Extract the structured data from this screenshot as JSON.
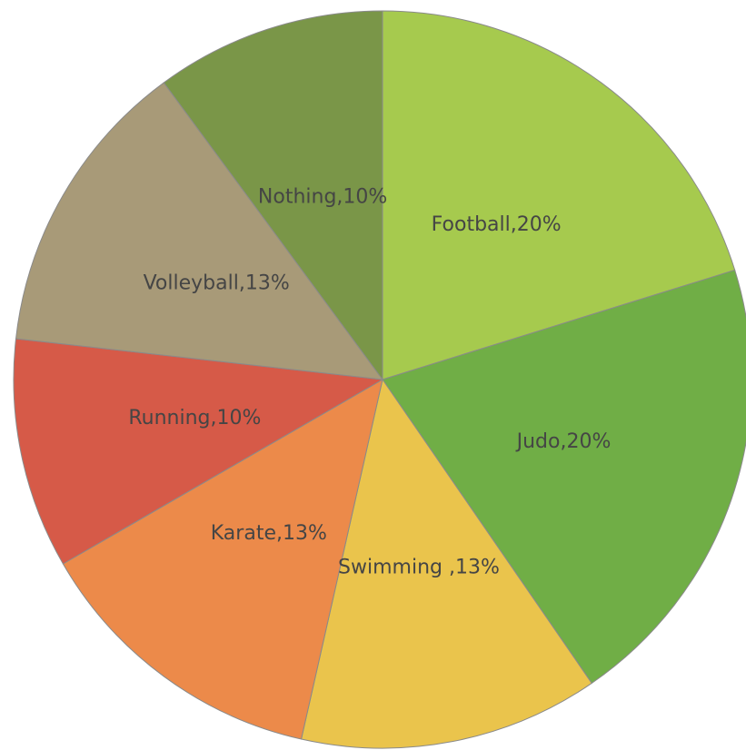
{
  "chart_data": {
    "type": "pie",
    "categories": [
      "Football",
      "Judo",
      "Swimming",
      "Karate",
      "Running",
      "Volleyball",
      "Nothing"
    ],
    "values": [
      20,
      20,
      13,
      13,
      10,
      13,
      10
    ],
    "value_labels": [
      "Football,20%",
      "Judo,20%",
      "Swimming ,13%",
      "Karate,13%",
      "Running,10%",
      "Volleyball,13%",
      "Nothing,10%"
    ],
    "colors": [
      "#a6ca4e",
      "#70ae46",
      "#eac44c",
      "#ec8a4a",
      "#d65a48",
      "#a89a78",
      "#7a9648"
    ],
    "start_angle": 0,
    "direction": "clockwise"
  }
}
